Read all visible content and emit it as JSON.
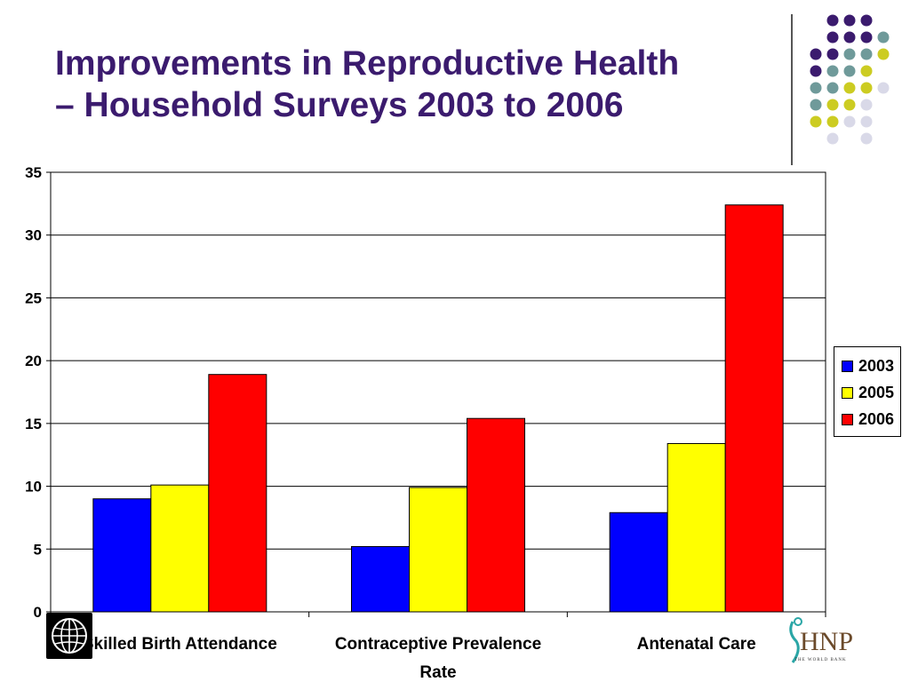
{
  "slide": {
    "title_line1": "Improvements in Reproductive Health",
    "title_line2": "– Household Surveys 2003 to 2006"
  },
  "colors": {
    "title": "#3b1b6e",
    "dots": [
      "#3b1b6e",
      "#6f9a9a",
      "#cccc22",
      "#d9d9e8"
    ]
  },
  "chart_data": {
    "type": "bar",
    "categories": [
      "Skilled Birth Attendance",
      "Contraceptive Prevalence Rate",
      "Antenatal Care"
    ],
    "category_lines": [
      [
        "Skilled Birth Attendance"
      ],
      [
        "Contraceptive Prevalence",
        "Rate"
      ],
      [
        "Antenatal Care"
      ]
    ],
    "series": [
      {
        "name": "2003",
        "color": "#0000ff",
        "values": [
          9.0,
          5.2,
          7.9
        ]
      },
      {
        "name": "2005",
        "color": "#ffff00",
        "values": [
          10.1,
          9.9,
          13.4
        ]
      },
      {
        "name": "2006",
        "color": "#ff0000",
        "values": [
          18.9,
          15.4,
          32.4
        ]
      }
    ],
    "ylim": [
      0,
      35
    ],
    "yticks": [
      "0",
      "5",
      "10",
      "15",
      "20",
      "25",
      "30",
      "35"
    ],
    "grid": true,
    "legend": "right"
  },
  "logos": {
    "hnp_text": "HNP",
    "hnp_subtext": "THE WORLD BANK"
  }
}
